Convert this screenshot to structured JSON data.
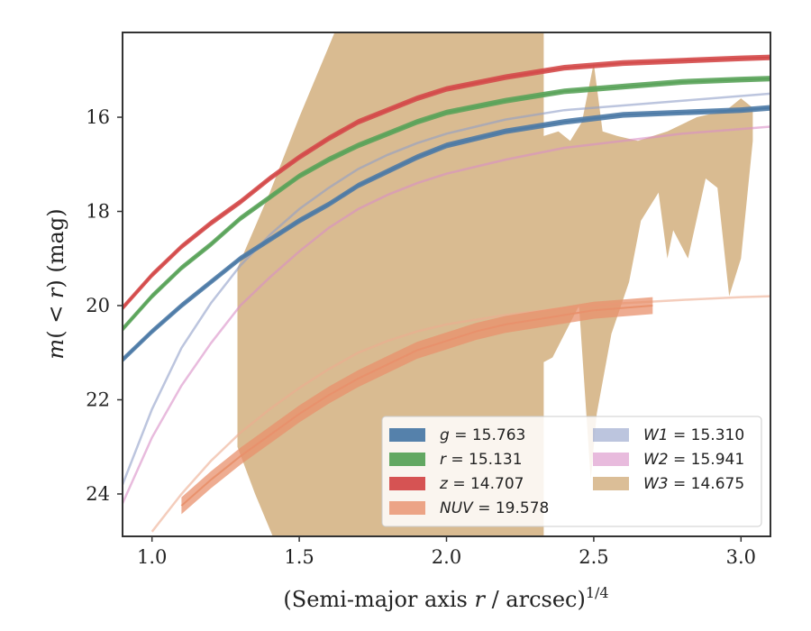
{
  "chart_data": {
    "type": "line",
    "xlabel": "(Semi-major axis r / arcsec)^{1/4}",
    "ylabel": "m(<r) (mag)",
    "xlim": [
      0.9,
      3.1
    ],
    "ylim": [
      24.9,
      14.2
    ],
    "y_inverted": true,
    "grid": false,
    "legend_position": "bottom-right",
    "xticks": [
      "1.0",
      "1.5",
      "2.0",
      "2.5",
      "3.0"
    ],
    "yticks": [
      "16",
      "18",
      "20",
      "22",
      "24"
    ],
    "series": [
      {
        "name": "g = 15.763",
        "label_prefix": "g",
        "label_value": "= 15.763",
        "color": "#4c7aa6",
        "kind": "band",
        "x": [
          0.9,
          1.0,
          1.1,
          1.2,
          1.3,
          1.4,
          1.5,
          1.6,
          1.7,
          1.8,
          1.9,
          2.0,
          2.2,
          2.4,
          2.6,
          2.8,
          3.0,
          3.1
        ],
        "y": [
          21.15,
          20.55,
          20.0,
          19.5,
          19.0,
          18.6,
          18.2,
          17.85,
          17.45,
          17.15,
          16.85,
          16.6,
          16.3,
          16.1,
          15.95,
          15.9,
          15.85,
          15.8
        ]
      },
      {
        "name": "r = 15.131",
        "label_prefix": "r",
        "label_value": "= 15.131",
        "color": "#5aa35a",
        "kind": "band",
        "x": [
          0.9,
          1.0,
          1.1,
          1.2,
          1.3,
          1.4,
          1.5,
          1.6,
          1.7,
          1.8,
          1.9,
          2.0,
          2.2,
          2.4,
          2.6,
          2.8,
          3.0,
          3.1
        ],
        "y": [
          20.5,
          19.8,
          19.2,
          18.7,
          18.15,
          17.7,
          17.25,
          16.9,
          16.6,
          16.35,
          16.1,
          15.9,
          15.65,
          15.45,
          15.35,
          15.25,
          15.2,
          15.18
        ]
      },
      {
        "name": "z = 14.707",
        "label_prefix": "z",
        "label_value": "= 14.707",
        "color": "#d44a4a",
        "kind": "band",
        "x": [
          0.9,
          1.0,
          1.1,
          1.2,
          1.3,
          1.4,
          1.5,
          1.6,
          1.7,
          1.8,
          1.9,
          2.0,
          2.2,
          2.4,
          2.6,
          2.8,
          3.0,
          3.1
        ],
        "y": [
          20.05,
          19.35,
          18.75,
          18.25,
          17.8,
          17.3,
          16.85,
          16.45,
          16.1,
          15.85,
          15.6,
          15.4,
          15.15,
          14.95,
          14.85,
          14.8,
          14.75,
          14.73
        ]
      },
      {
        "name": "NUV = 19.578",
        "label_prefix": "NUV",
        "label_value": "= 19.578",
        "color": "#e8906c",
        "kind": "band",
        "x": [
          1.1,
          1.2,
          1.3,
          1.4,
          1.5,
          1.6,
          1.7,
          1.8,
          1.9,
          2.0,
          2.1,
          2.2,
          2.3,
          2.4,
          2.5,
          2.6,
          2.7
        ],
        "y": [
          24.25,
          23.7,
          23.2,
          22.75,
          22.3,
          21.9,
          21.55,
          21.25,
          20.95,
          20.75,
          20.55,
          20.4,
          20.3,
          20.2,
          20.1,
          20.05,
          20.0
        ]
      },
      {
        "name": "W1 = 15.310",
        "label_prefix": "W1",
        "label_value": "= 15.310",
        "color": "#8f9ec8",
        "kind": "line",
        "x": [
          0.9,
          1.0,
          1.1,
          1.2,
          1.3,
          1.4,
          1.5,
          1.6,
          1.7,
          1.8,
          1.9,
          2.0,
          2.2,
          2.4,
          2.6,
          2.8,
          3.0,
          3.1
        ],
        "y": [
          23.8,
          22.2,
          20.9,
          19.95,
          19.15,
          18.5,
          17.95,
          17.5,
          17.1,
          16.8,
          16.55,
          16.35,
          16.05,
          15.85,
          15.75,
          15.65,
          15.55,
          15.5
        ]
      },
      {
        "name": "W2 = 15.941",
        "label_prefix": "W2",
        "label_value": "= 15.941",
        "color": "#d98ec6",
        "kind": "line",
        "x": [
          0.9,
          1.0,
          1.1,
          1.2,
          1.3,
          1.4,
          1.5,
          1.6,
          1.7,
          1.8,
          1.9,
          2.0,
          2.2,
          2.4,
          2.6,
          2.8,
          3.0,
          3.1
        ],
        "y": [
          24.2,
          22.8,
          21.7,
          20.8,
          20.0,
          19.4,
          18.85,
          18.35,
          17.95,
          17.65,
          17.4,
          17.2,
          16.9,
          16.65,
          16.5,
          16.35,
          16.25,
          16.2
        ]
      },
      {
        "name": "W3 = 14.675",
        "label_prefix": "W3",
        "label_value": "= 14.675",
        "color": "#d9bb91",
        "kind": "fill",
        "x_upper": [
          1.29,
          1.4,
          1.5,
          1.6,
          1.7,
          1.75,
          2.33,
          2.33,
          2.38,
          2.42,
          2.46,
          2.5,
          2.53,
          2.58,
          2.65,
          2.75,
          2.85,
          2.95,
          3.0,
          3.04
        ],
        "y_upper": [
          19.2,
          17.6,
          16.0,
          14.5,
          13.0,
          12.5,
          12.5,
          16.4,
          16.3,
          16.5,
          16.1,
          14.85,
          16.3,
          16.4,
          16.5,
          16.3,
          16.0,
          15.85,
          15.6,
          15.8
        ],
        "x_lower": [
          1.29,
          1.35,
          1.45,
          1.7,
          2.0,
          2.33,
          2.33,
          2.36,
          2.45,
          2.49,
          2.51,
          2.56,
          2.62,
          2.66,
          2.72,
          2.75,
          2.77,
          2.82,
          2.88,
          2.92,
          2.96,
          3.0,
          3.04
        ],
        "y_lower": [
          23.0,
          24.0,
          25.5,
          26.0,
          26.0,
          26.0,
          21.2,
          21.1,
          20.0,
          23.7,
          22.3,
          20.6,
          19.5,
          18.2,
          17.6,
          19.0,
          18.4,
          19.0,
          17.3,
          17.5,
          19.8,
          19.0,
          16.5
        ]
      },
      {
        "name": "",
        "color": "#ecab8f",
        "kind": "line",
        "opacity": 0.6,
        "x": [
          1.0,
          1.1,
          1.2,
          1.3,
          1.4,
          1.5,
          1.6,
          1.7,
          1.8,
          1.9,
          2.0,
          2.2,
          2.4,
          2.6,
          2.8,
          3.0,
          3.1
        ],
        "y": [
          24.8,
          24.0,
          23.3,
          22.7,
          22.2,
          21.75,
          21.35,
          21.0,
          20.75,
          20.55,
          20.4,
          20.2,
          20.05,
          19.95,
          19.88,
          19.82,
          19.8
        ]
      }
    ]
  }
}
